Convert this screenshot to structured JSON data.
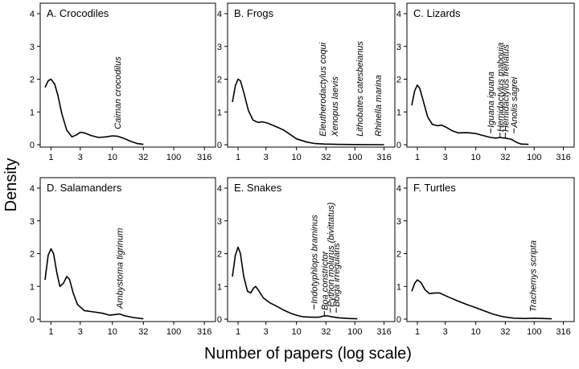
{
  "figure": {
    "ylabel": "Density",
    "xlabel": "Number of papers (log scale)"
  },
  "chart_data": [
    {
      "type": "line",
      "title": "A. Crocodiles",
      "x_ticks": [
        1,
        3,
        10,
        32,
        100,
        316
      ],
      "x_tick_labels": [
        "1",
        "3",
        "10",
        "32",
        "100",
        "316"
      ],
      "y_ticks": [
        0,
        1,
        2,
        3,
        4
      ],
      "ylim": [
        0,
        4
      ],
      "xlim": [
        0.8,
        400
      ],
      "curve": [
        [
          0.8,
          1.75
        ],
        [
          0.9,
          1.95
        ],
        [
          1,
          2.0
        ],
        [
          1.15,
          1.85
        ],
        [
          1.3,
          1.5
        ],
        [
          1.5,
          0.95
        ],
        [
          1.8,
          0.45
        ],
        [
          2.2,
          0.24
        ],
        [
          2.6,
          0.3
        ],
        [
          3,
          0.38
        ],
        [
          3.5,
          0.36
        ],
        [
          4.5,
          0.28
        ],
        [
          6,
          0.22
        ],
        [
          8,
          0.24
        ],
        [
          10,
          0.27
        ],
        [
          12,
          0.26
        ],
        [
          15,
          0.2
        ],
        [
          20,
          0.1
        ],
        [
          25,
          0.04
        ],
        [
          32,
          0.01
        ]
      ],
      "annotations": [
        {
          "label": "Caiman crocodilus",
          "x": 12,
          "y": 0.3,
          "line": false
        }
      ]
    },
    {
      "type": "line",
      "title": "B. Frogs",
      "x_ticks": [
        1,
        3,
        10,
        32,
        100,
        316
      ],
      "x_tick_labels": [
        "1",
        "3",
        "10",
        "32",
        "100",
        "316"
      ],
      "y_ticks": [
        0,
        1,
        2,
        3,
        4
      ],
      "ylim": [
        0,
        4
      ],
      "xlim": [
        0.8,
        400
      ],
      "curve": [
        [
          0.8,
          1.3
        ],
        [
          0.9,
          1.8
        ],
        [
          1,
          2.0
        ],
        [
          1.1,
          1.95
        ],
        [
          1.25,
          1.6
        ],
        [
          1.5,
          1.05
        ],
        [
          1.8,
          0.75
        ],
        [
          2.2,
          0.68
        ],
        [
          2.6,
          0.7
        ],
        [
          3.2,
          0.66
        ],
        [
          4.5,
          0.55
        ],
        [
          6,
          0.45
        ],
        [
          8,
          0.3
        ],
        [
          10,
          0.18
        ],
        [
          15,
          0.08
        ],
        [
          20,
          0.04
        ],
        [
          30,
          0.02
        ],
        [
          50,
          0.01
        ],
        [
          100,
          0.005
        ],
        [
          316,
          0.0
        ]
      ],
      "annotations": [
        {
          "label": "Eleutherodactylus coqui",
          "x": 28,
          "y": 0.08,
          "line": false
        },
        {
          "label": "Xenopus laevis",
          "x": 45,
          "y": 0.08,
          "line": false
        },
        {
          "label": "Lithobates catesbeianus",
          "x": 120,
          "y": 0.08,
          "line": false
        },
        {
          "label": "Rhinella marina",
          "x": 250,
          "y": 0.08,
          "line": false
        }
      ]
    },
    {
      "type": "line",
      "title": "C. Lizards",
      "x_ticks": [
        1,
        3,
        10,
        32,
        100,
        316
      ],
      "x_tick_labels": [
        "1",
        "3",
        "10",
        "32",
        "100",
        "316"
      ],
      "y_ticks": [
        0,
        1,
        2,
        3,
        4
      ],
      "ylim": [
        0,
        4
      ],
      "xlim": [
        0.8,
        400
      ],
      "curve": [
        [
          0.8,
          1.2
        ],
        [
          0.9,
          1.65
        ],
        [
          1,
          1.82
        ],
        [
          1.1,
          1.72
        ],
        [
          1.3,
          1.25
        ],
        [
          1.5,
          0.85
        ],
        [
          1.8,
          0.62
        ],
        [
          2.2,
          0.58
        ],
        [
          2.6,
          0.6
        ],
        [
          3.2,
          0.52
        ],
        [
          4,
          0.42
        ],
        [
          5,
          0.36
        ],
        [
          7,
          0.37
        ],
        [
          10,
          0.34
        ],
        [
          14,
          0.27
        ],
        [
          18,
          0.22
        ],
        [
          22,
          0.2
        ],
        [
          26,
          0.22
        ],
        [
          32,
          0.2
        ],
        [
          40,
          0.17
        ],
        [
          50,
          0.07
        ],
        [
          60,
          0.02
        ],
        [
          80,
          0.01
        ]
      ],
      "annotations": [
        {
          "label": "Iguana iguana",
          "x": 18,
          "y": 0.35,
          "line": true
        },
        {
          "label": "Hemidactylus mabouia",
          "x": 26,
          "y": 0.22,
          "line": true
        },
        {
          "label": "Hemidactylus frenatus",
          "x": 32,
          "y": 0.22,
          "line": true
        },
        {
          "label": "Anolis sagrei",
          "x": 45,
          "y": 0.35,
          "line": true
        }
      ]
    },
    {
      "type": "line",
      "title": "D. Salamanders",
      "x_ticks": [
        1,
        3,
        10,
        32,
        100,
        316
      ],
      "x_tick_labels": [
        "1",
        "3",
        "10",
        "32",
        "100",
        "316"
      ],
      "y_ticks": [
        0,
        1,
        2,
        3,
        4
      ],
      "ylim": [
        0,
        4
      ],
      "xlim": [
        0.8,
        400
      ],
      "curve": [
        [
          0.8,
          1.2
        ],
        [
          0.9,
          1.95
        ],
        [
          1,
          2.15
        ],
        [
          1.1,
          2.0
        ],
        [
          1.25,
          1.4
        ],
        [
          1.4,
          1.0
        ],
        [
          1.6,
          1.1
        ],
        [
          1.8,
          1.3
        ],
        [
          2,
          1.22
        ],
        [
          2.3,
          0.8
        ],
        [
          2.7,
          0.45
        ],
        [
          3.5,
          0.26
        ],
        [
          5,
          0.22
        ],
        [
          7,
          0.18
        ],
        [
          9,
          0.12
        ],
        [
          11,
          0.14
        ],
        [
          13,
          0.16
        ],
        [
          16,
          0.1
        ],
        [
          22,
          0.05
        ],
        [
          32,
          0.01
        ]
      ],
      "annotations": [
        {
          "label": "Ambystoma tigrinum",
          "x": 13,
          "y": 0.15,
          "line": false
        }
      ]
    },
    {
      "type": "line",
      "title": "E. Snakes",
      "x_ticks": [
        1,
        3,
        10,
        32,
        100,
        316
      ],
      "x_tick_labels": [
        "1",
        "3",
        "10",
        "32",
        "100",
        "316"
      ],
      "y_ticks": [
        0,
        1,
        2,
        3,
        4
      ],
      "ylim": [
        0,
        4
      ],
      "xlim": [
        0.8,
        400
      ],
      "curve": [
        [
          0.8,
          1.3
        ],
        [
          0.9,
          1.95
        ],
        [
          1,
          2.2
        ],
        [
          1.1,
          2.0
        ],
        [
          1.25,
          1.3
        ],
        [
          1.45,
          0.85
        ],
        [
          1.65,
          0.8
        ],
        [
          1.85,
          0.95
        ],
        [
          2,
          1.0
        ],
        [
          2.3,
          0.85
        ],
        [
          2.7,
          0.65
        ],
        [
          3.5,
          0.5
        ],
        [
          4.5,
          0.4
        ],
        [
          6,
          0.28
        ],
        [
          8,
          0.18
        ],
        [
          10,
          0.12
        ],
        [
          13,
          0.07
        ],
        [
          18,
          0.06
        ],
        [
          24,
          0.06
        ],
        [
          30,
          0.1
        ],
        [
          34,
          0.1
        ],
        [
          40,
          0.07
        ],
        [
          55,
          0.04
        ],
        [
          80,
          0.02
        ],
        [
          110,
          0.01
        ]
      ],
      "annotations": [
        {
          "label": "Indotyphlops braminus",
          "x": 20,
          "y": 0.3,
          "line": true
        },
        {
          "label": "Boa constrictor",
          "x": 30,
          "y": 0.1,
          "line": true
        },
        {
          "label": "Python molurus (bivittatus)",
          "x": 38,
          "y": 0.2,
          "line": true
        },
        {
          "label": "Boiga irregularis",
          "x": 48,
          "y": 0.2,
          "line": true
        }
      ]
    },
    {
      "type": "line",
      "title": "F. Turtles",
      "x_ticks": [
        1,
        3,
        10,
        32,
        100,
        316
      ],
      "x_tick_labels": [
        "1",
        "3",
        "10",
        "32",
        "100",
        "316"
      ],
      "y_ticks": [
        0,
        1,
        2,
        3,
        4
      ],
      "ylim": [
        0,
        4
      ],
      "xlim": [
        0.8,
        400
      ],
      "curve": [
        [
          0.8,
          0.85
        ],
        [
          0.9,
          1.1
        ],
        [
          1,
          1.2
        ],
        [
          1.15,
          1.12
        ],
        [
          1.35,
          0.9
        ],
        [
          1.6,
          0.78
        ],
        [
          2,
          0.8
        ],
        [
          2.4,
          0.8
        ],
        [
          3,
          0.72
        ],
        [
          4,
          0.62
        ],
        [
          5,
          0.55
        ],
        [
          7,
          0.45
        ],
        [
          10,
          0.35
        ],
        [
          14,
          0.25
        ],
        [
          20,
          0.15
        ],
        [
          30,
          0.07
        ],
        [
          45,
          0.03
        ],
        [
          70,
          0.02
        ],
        [
          100,
          0.03
        ],
        [
          140,
          0.02
        ],
        [
          200,
          0.01
        ]
      ],
      "annotations": [
        {
          "label": "Trachemys scripta",
          "x": 95,
          "y": 0.05,
          "line": false
        }
      ]
    }
  ]
}
